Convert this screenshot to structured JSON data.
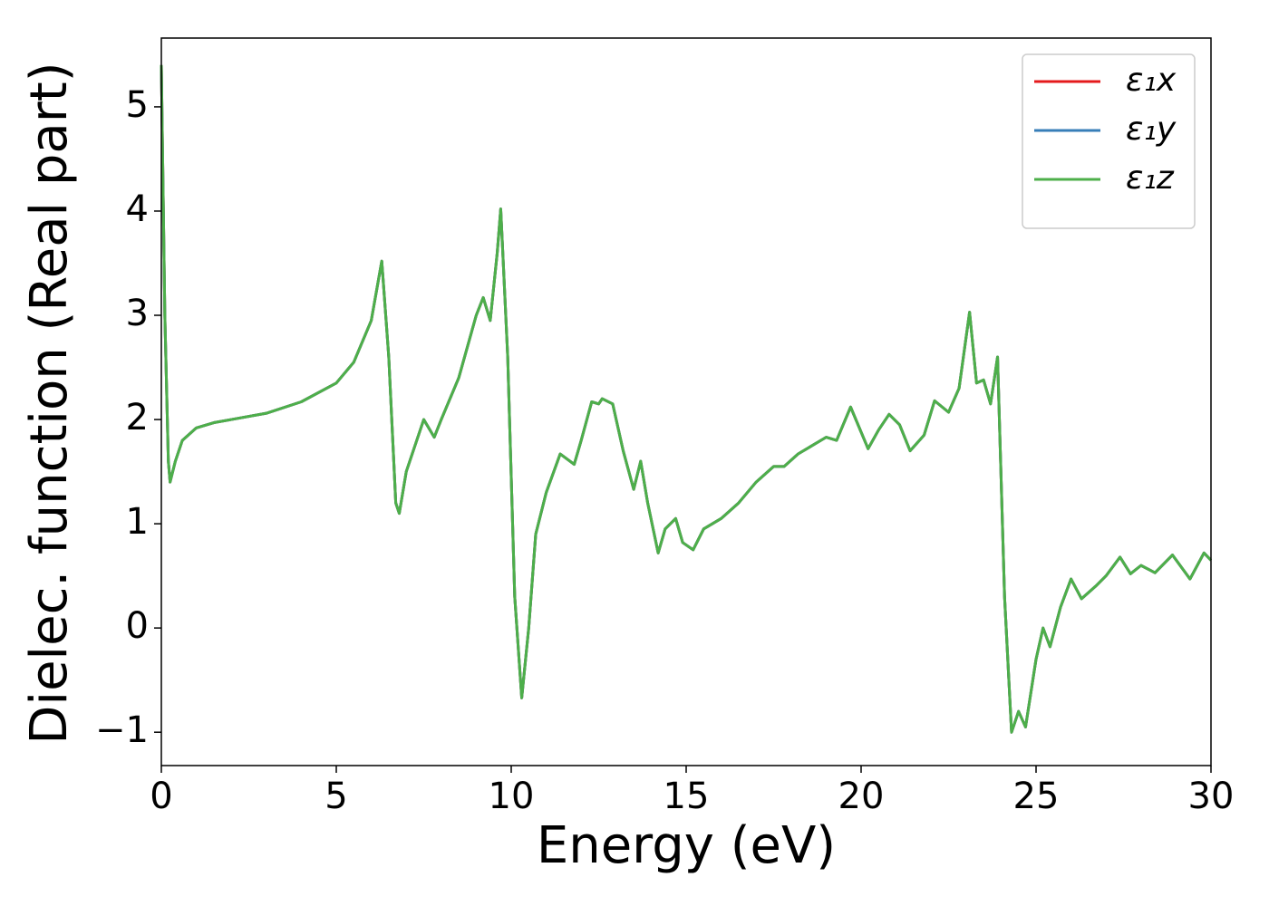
{
  "chart_data": {
    "type": "line",
    "xlabel": "Energy (eV)",
    "ylabel": "Dielec. function (Real part)",
    "x": [
      0,
      0.1,
      0.2,
      0.25,
      0.4,
      0.6,
      1,
      1.5,
      2,
      3,
      4,
      5,
      5.5,
      6,
      6.3,
      6.5,
      6.7,
      6.8,
      7,
      7.2,
      7.5,
      7.8,
      8,
      8.5,
      9,
      9.2,
      9.4,
      9.6,
      9.7,
      9.9,
      10.1,
      10.3,
      10.5,
      10.7,
      11,
      11.4,
      11.8,
      12,
      12.3,
      12.5,
      12.6,
      12.9,
      13.2,
      13.5,
      13.7,
      13.9,
      14.2,
      14.4,
      14.7,
      14.9,
      15.2,
      15.5,
      16,
      16.5,
      17,
      17.5,
      17.8,
      18.2,
      18.6,
      19,
      19.3,
      19.7,
      20.2,
      20.5,
      20.8,
      21.1,
      21.4,
      21.8,
      22.1,
      22.5,
      22.8,
      23.1,
      23.3,
      23.5,
      23.7,
      23.9,
      24.1,
      24.3,
      24.5,
      24.7,
      25,
      25.2,
      25.4,
      25.7,
      26,
      26.3,
      26.7,
      27,
      27.4,
      27.7,
      28,
      28.4,
      28.9,
      29.4,
      29.8,
      30
    ],
    "series": [
      {
        "name": "ε₁x",
        "color": "#e41a1c",
        "values": [
          5.4,
          3.0,
          1.6,
          1.4,
          1.6,
          1.8,
          1.92,
          1.97,
          2.0,
          2.06,
          2.17,
          2.35,
          2.55,
          2.95,
          3.52,
          2.6,
          1.2,
          1.1,
          1.5,
          1.7,
          2.0,
          1.83,
          2.0,
          2.4,
          3.0,
          3.17,
          2.95,
          3.6,
          4.02,
          2.6,
          0.3,
          -0.67,
          0.0,
          0.9,
          1.3,
          1.67,
          1.57,
          1.8,
          2.17,
          2.15,
          2.2,
          2.15,
          1.7,
          1.33,
          1.6,
          1.2,
          0.72,
          0.95,
          1.05,
          0.82,
          0.75,
          0.95,
          1.05,
          1.2,
          1.4,
          1.55,
          1.55,
          1.67,
          1.75,
          1.83,
          1.8,
          2.12,
          1.72,
          1.9,
          2.05,
          1.95,
          1.7,
          1.85,
          2.18,
          2.07,
          2.3,
          3.03,
          2.35,
          2.38,
          2.15,
          2.6,
          0.3,
          -1.0,
          -0.8,
          -0.95,
          -0.3,
          0.0,
          -0.18,
          0.2,
          0.47,
          0.28,
          0.4,
          0.5,
          0.68,
          0.52,
          0.6,
          0.53,
          0.7,
          0.47,
          0.72,
          0.65
        ]
      },
      {
        "name": "ε₁y",
        "color": "#377eb8",
        "values": [
          5.4,
          3.0,
          1.6,
          1.4,
          1.6,
          1.8,
          1.92,
          1.97,
          2.0,
          2.06,
          2.17,
          2.35,
          2.55,
          2.95,
          3.52,
          2.6,
          1.2,
          1.1,
          1.5,
          1.7,
          2.0,
          1.83,
          2.0,
          2.4,
          3.0,
          3.17,
          2.95,
          3.6,
          4.02,
          2.6,
          0.3,
          -0.67,
          0.0,
          0.9,
          1.3,
          1.67,
          1.57,
          1.8,
          2.17,
          2.15,
          2.2,
          2.15,
          1.7,
          1.33,
          1.6,
          1.2,
          0.72,
          0.95,
          1.05,
          0.82,
          0.75,
          0.95,
          1.05,
          1.2,
          1.4,
          1.55,
          1.55,
          1.67,
          1.75,
          1.83,
          1.8,
          2.12,
          1.72,
          1.9,
          2.05,
          1.95,
          1.7,
          1.85,
          2.18,
          2.07,
          2.3,
          3.03,
          2.35,
          2.38,
          2.15,
          2.6,
          0.3,
          -1.0,
          -0.8,
          -0.95,
          -0.3,
          0.0,
          -0.18,
          0.2,
          0.47,
          0.28,
          0.4,
          0.5,
          0.68,
          0.52,
          0.6,
          0.53,
          0.7,
          0.47,
          0.72,
          0.65
        ]
      },
      {
        "name": "ε₁z",
        "color": "#4daf4a",
        "values": [
          5.4,
          3.0,
          1.6,
          1.4,
          1.6,
          1.8,
          1.92,
          1.97,
          2.0,
          2.06,
          2.17,
          2.35,
          2.55,
          2.95,
          3.52,
          2.6,
          1.2,
          1.1,
          1.5,
          1.7,
          2.0,
          1.83,
          2.0,
          2.4,
          3.0,
          3.17,
          2.95,
          3.6,
          4.02,
          2.6,
          0.3,
          -0.67,
          0.0,
          0.9,
          1.3,
          1.67,
          1.57,
          1.8,
          2.17,
          2.15,
          2.2,
          2.15,
          1.7,
          1.33,
          1.6,
          1.2,
          0.72,
          0.95,
          1.05,
          0.82,
          0.75,
          0.95,
          1.05,
          1.2,
          1.4,
          1.55,
          1.55,
          1.67,
          1.75,
          1.83,
          1.8,
          2.12,
          1.72,
          1.9,
          2.05,
          1.95,
          1.7,
          1.85,
          2.18,
          2.07,
          2.3,
          3.03,
          2.35,
          2.38,
          2.15,
          2.6,
          0.3,
          -1.0,
          -0.8,
          -0.95,
          -0.3,
          0.0,
          -0.18,
          0.2,
          0.47,
          0.28,
          0.4,
          0.5,
          0.68,
          0.52,
          0.6,
          0.53,
          0.7,
          0.47,
          0.72,
          0.65
        ]
      }
    ],
    "xlim": [
      0,
      30
    ],
    "xticks": [
      0,
      5,
      10,
      15,
      20,
      25,
      30
    ],
    "ylim": [
      -1.32,
      5.66
    ],
    "yticks": [
      {
        "value": -1,
        "label": "−1"
      },
      0,
      1,
      2,
      3,
      4,
      5
    ],
    "grid": false,
    "legend": "upper right"
  }
}
